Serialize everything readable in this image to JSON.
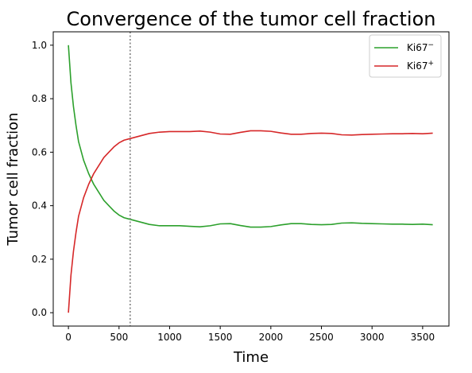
{
  "chart_data": {
    "type": "line",
    "title": "Convergence of the tumor cell fraction",
    "xlabel": "Time",
    "ylabel": "Tumor cell fraction",
    "xlim": [
      -150,
      3760
    ],
    "ylim": [
      -0.05,
      1.05
    ],
    "xticks": [
      0,
      500,
      1000,
      1500,
      2000,
      2500,
      3000,
      3500
    ],
    "yticks": [
      0.0,
      0.2,
      0.4,
      0.6,
      0.8,
      1.0
    ],
    "xtick_labels": [
      "0",
      "500",
      "1000",
      "1500",
      "2000",
      "2500",
      "3000",
      "3500"
    ],
    "ytick_labels": [
      "0.0",
      "0.2",
      "0.4",
      "0.6",
      "0.8",
      "1.0"
    ],
    "grid": false,
    "legend_position": "top-right",
    "vline": {
      "x": 610,
      "style": "dotted",
      "color": "#808080"
    },
    "series": [
      {
        "name": "Ki67",
        "name_sup": "−",
        "color": "#2ca02c",
        "x": [
          0,
          25,
          50,
          75,
          100,
          150,
          200,
          250,
          300,
          350,
          400,
          450,
          500,
          550,
          600,
          700,
          800,
          900,
          1000,
          1100,
          1200,
          1300,
          1400,
          1500,
          1600,
          1700,
          1800,
          1900,
          2000,
          2100,
          2200,
          2300,
          2400,
          2500,
          2600,
          2700,
          2800,
          2900,
          3000,
          3100,
          3200,
          3300,
          3400,
          3500,
          3600
        ],
        "values": [
          1.0,
          0.86,
          0.77,
          0.7,
          0.64,
          0.57,
          0.52,
          0.48,
          0.45,
          0.42,
          0.4,
          0.38,
          0.365,
          0.355,
          0.35,
          0.34,
          0.33,
          0.325,
          0.325,
          0.325,
          0.323,
          0.321,
          0.325,
          0.332,
          0.333,
          0.326,
          0.32,
          0.32,
          0.322,
          0.328,
          0.333,
          0.333,
          0.33,
          0.329,
          0.33,
          0.335,
          0.336,
          0.334,
          0.333,
          0.332,
          0.331,
          0.331,
          0.33,
          0.331,
          0.329
        ]
      },
      {
        "name": "Ki67",
        "name_sup": "+",
        "color": "#d62728",
        "x": [
          0,
          25,
          50,
          75,
          100,
          150,
          200,
          250,
          300,
          350,
          400,
          450,
          500,
          550,
          600,
          700,
          800,
          900,
          1000,
          1100,
          1200,
          1300,
          1400,
          1500,
          1600,
          1700,
          1800,
          1900,
          2000,
          2100,
          2200,
          2300,
          2400,
          2500,
          2600,
          2700,
          2800,
          2900,
          3000,
          3100,
          3200,
          3300,
          3400,
          3500,
          3600
        ],
        "values": [
          0.0,
          0.14,
          0.23,
          0.3,
          0.36,
          0.43,
          0.48,
          0.52,
          0.55,
          0.58,
          0.6,
          0.62,
          0.635,
          0.645,
          0.65,
          0.66,
          0.67,
          0.675,
          0.677,
          0.677,
          0.677,
          0.679,
          0.675,
          0.668,
          0.667,
          0.674,
          0.68,
          0.68,
          0.678,
          0.672,
          0.667,
          0.667,
          0.67,
          0.671,
          0.67,
          0.665,
          0.664,
          0.666,
          0.667,
          0.668,
          0.669,
          0.669,
          0.67,
          0.669,
          0.671
        ]
      }
    ]
  }
}
